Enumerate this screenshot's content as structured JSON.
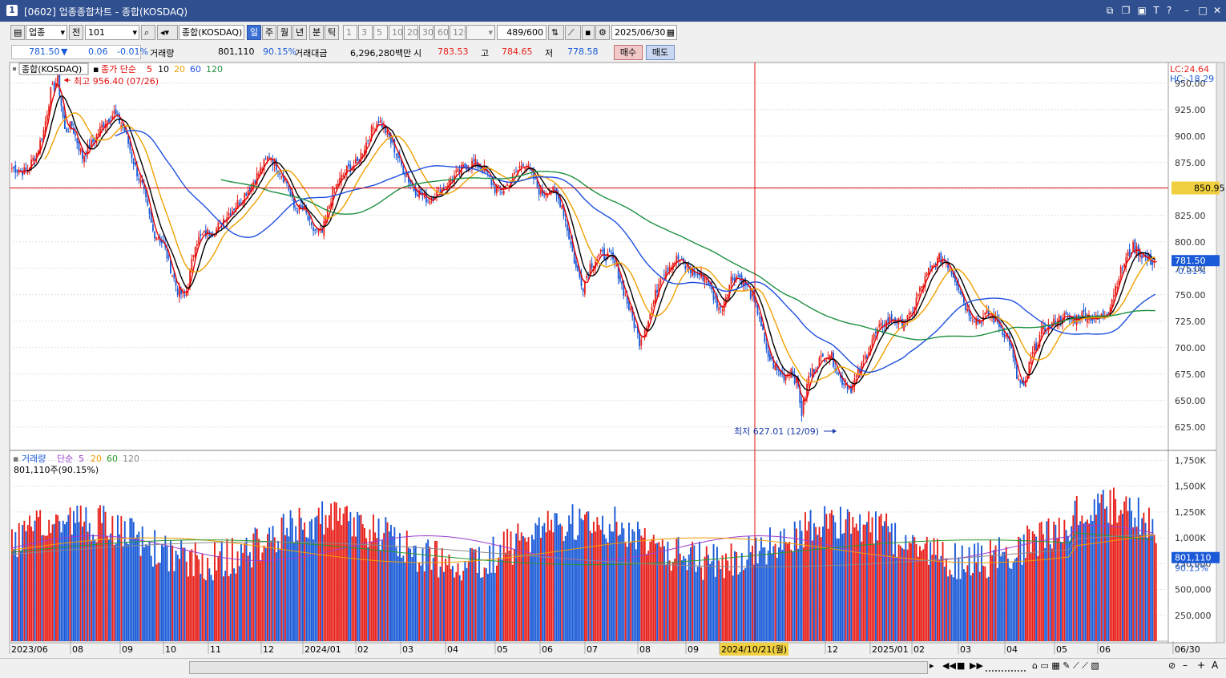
{
  "window": {
    "number": "1",
    "title": "[0602] 업종종합차트 - 종합(KOSDAQ)"
  },
  "toolbar": {
    "market": "업종",
    "prev": "전",
    "code": "101",
    "name": "종합(KOSDAQ)",
    "periods": [
      "일",
      "주",
      "월",
      "년",
      "분",
      "틱"
    ],
    "active_period": "일",
    "minutes": [
      "1",
      "3",
      "5",
      "10",
      "20",
      "30",
      "60",
      "120"
    ],
    "count": "489",
    "count_max": "/600",
    "date": "2025/06/30"
  },
  "quote": {
    "price": "781.50",
    "change": "0.06",
    "change_pct": "-0.01%",
    "volume_label": "거래량",
    "volume": "801,110",
    "volume_pct": "90.15%",
    "amount_label": "거래대금",
    "amount": "6,296,280백만",
    "open_label": "시",
    "open": "783.53",
    "high_label": "고",
    "high": "784.65",
    "low_label": "저",
    "low": "778.58",
    "buy_label": "매수",
    "sell_label": "매도"
  },
  "chart_data": [
    {
      "type": "candlestick",
      "title": "종합(KOSDAQ)",
      "legend": {
        "label": "종가 단순",
        "periods": [
          "5",
          "10",
          "20",
          "60",
          "120"
        ],
        "colors": [
          "#e00000",
          "#000000",
          "#f0a000",
          "#1f4fe0",
          "#1e9040"
        ]
      },
      "ylim": [
        615,
        965
      ],
      "y_ticks": [
        625,
        650,
        675,
        700,
        725,
        750,
        775,
        800,
        825,
        850,
        875,
        900,
        925,
        950
      ],
      "y_tick_labels": [
        "625.00",
        "650.00",
        "675.00",
        "700.00",
        "725.00",
        "750.00",
        "775.00",
        "800.00",
        "825.00",
        "850.00",
        "875.00",
        "900.00",
        "925.00",
        "950.00"
      ],
      "annotations": {
        "high": "최고 956.40 (07/26)",
        "low": "최저 627.01 (12/09)",
        "lc": "LC:24.64",
        "hc": "HC:-18.29"
      },
      "crosshair": {
        "price": 850.95,
        "price_label": "850.95",
        "date_label": "2024/10/21(월)"
      },
      "last": {
        "price": 781.5,
        "label": "781.50",
        "pct_label": "-0.01%"
      },
      "anchors": [
        [
          0,
          870
        ],
        [
          8,
          866
        ],
        [
          14,
          884
        ],
        [
          18,
          905
        ],
        [
          22,
          942
        ],
        [
          26,
          953
        ],
        [
          30,
          905
        ],
        [
          34,
          910
        ],
        [
          40,
          880
        ],
        [
          46,
          895
        ],
        [
          52,
          912
        ],
        [
          58,
          922
        ],
        [
          64,
          905
        ],
        [
          70,
          870
        ],
        [
          74,
          852
        ],
        [
          80,
          810
        ],
        [
          86,
          798
        ],
        [
          90,
          775
        ],
        [
          94,
          754
        ],
        [
          98,
          748
        ],
        [
          100,
          760
        ],
        [
          104,
          800
        ],
        [
          110,
          808
        ],
        [
          116,
          812
        ],
        [
          120,
          822
        ],
        [
          130,
          840
        ],
        [
          140,
          865
        ],
        [
          146,
          882
        ],
        [
          150,
          872
        ],
        [
          156,
          856
        ],
        [
          160,
          832
        ],
        [
          166,
          830
        ],
        [
          170,
          812
        ],
        [
          176,
          808
        ],
        [
          182,
          848
        ],
        [
          190,
          868
        ],
        [
          196,
          875
        ],
        [
          204,
          905
        ],
        [
          208,
          916
        ],
        [
          212,
          905
        ],
        [
          218,
          884
        ],
        [
          222,
          868
        ],
        [
          228,
          850
        ],
        [
          236,
          840
        ],
        [
          244,
          850
        ],
        [
          250,
          860
        ],
        [
          256,
          870
        ],
        [
          262,
          875
        ],
        [
          268,
          868
        ],
        [
          274,
          850
        ],
        [
          278,
          848
        ],
        [
          284,
          860
        ],
        [
          290,
          876
        ],
        [
          296,
          860
        ],
        [
          300,
          845
        ],
        [
          306,
          850
        ],
        [
          312,
          835
        ],
        [
          316,
          805
        ],
        [
          320,
          775
        ],
        [
          324,
          758
        ],
        [
          328,
          778
        ],
        [
          334,
          788
        ],
        [
          340,
          785
        ],
        [
          344,
          770
        ],
        [
          348,
          748
        ],
        [
          352,
          728
        ],
        [
          356,
          706
        ],
        [
          362,
          732
        ],
        [
          368,
          768
        ],
        [
          374,
          780
        ],
        [
          378,
          784
        ],
        [
          382,
          776
        ],
        [
          388,
          770
        ],
        [
          394,
          766
        ],
        [
          398,
          748
        ],
        [
          402,
          735
        ],
        [
          408,
          765
        ],
        [
          412,
          768
        ],
        [
          418,
          755
        ],
        [
          424,
          730
        ],
        [
          428,
          695
        ],
        [
          434,
          678
        ],
        [
          438,
          673
        ],
        [
          442,
          680
        ],
        [
          446,
          662
        ],
        [
          448,
          638
        ],
        [
          452,
          672
        ],
        [
          458,
          688
        ],
        [
          464,
          695
        ],
        [
          470,
          670
        ],
        [
          476,
          662
        ],
        [
          482,
          682
        ],
        [
          488,
          708
        ],
        [
          494,
          722
        ],
        [
          500,
          728
        ],
        [
          504,
          722
        ],
        [
          510,
          730
        ],
        [
          514,
          750
        ],
        [
          520,
          772
        ],
        [
          526,
          784
        ],
        [
          530,
          782
        ],
        [
          536,
          762
        ],
        [
          542,
          735
        ],
        [
          548,
          725
        ],
        [
          554,
          732
        ],
        [
          560,
          722
        ],
        [
          566,
          705
        ],
        [
          570,
          672
        ],
        [
          574,
          660
        ],
        [
          578,
          690
        ],
        [
          584,
          715
        ],
        [
          590,
          722
        ],
        [
          596,
          730
        ],
        [
          602,
          726
        ],
        [
          608,
          732
        ],
        [
          616,
          726
        ],
        [
          622,
          736
        ],
        [
          628,
          768
        ],
        [
          632,
          784
        ],
        [
          636,
          795
        ],
        [
          640,
          790
        ],
        [
          644,
          783
        ],
        [
          646,
          781.5
        ]
      ],
      "volume_pane": {
        "title": "거래량",
        "legend": {
          "label": "단순",
          "periods": [
            "5",
            "20",
            "60",
            "120"
          ],
          "colors": [
            "#9a3fd0",
            "#f0a000",
            "#2a9a2a",
            "#8a8a8a"
          ]
        },
        "subtitle": "801,110주(90.15%)",
        "ylim": [
          0,
          1800000
        ],
        "y_ticks": [
          250000,
          500000,
          750000,
          1000000,
          1250000,
          1500000,
          1750000
        ],
        "y_tick_labels": [
          "250,000",
          "500,000",
          "750,000",
          "1,000K",
          "1,250K",
          "1,500K",
          "1,750K"
        ],
        "last": {
          "value": 801110,
          "label": "801,110",
          "pct_label": "90.15%"
        }
      },
      "x_labels": [
        "2023/06",
        "08",
        "09",
        "10",
        "11",
        "12",
        "2024/01",
        "02",
        "03",
        "04",
        "05",
        "06",
        "07",
        "08",
        "09",
        "2024/10/21(월)",
        "12",
        "2025/01",
        "02",
        "03",
        "04",
        "05",
        "06",
        "06/30"
      ]
    }
  ],
  "colors": {
    "up": "#e8201a",
    "down": "#1a5ad8",
    "titlebar": "#2f4f8f"
  }
}
